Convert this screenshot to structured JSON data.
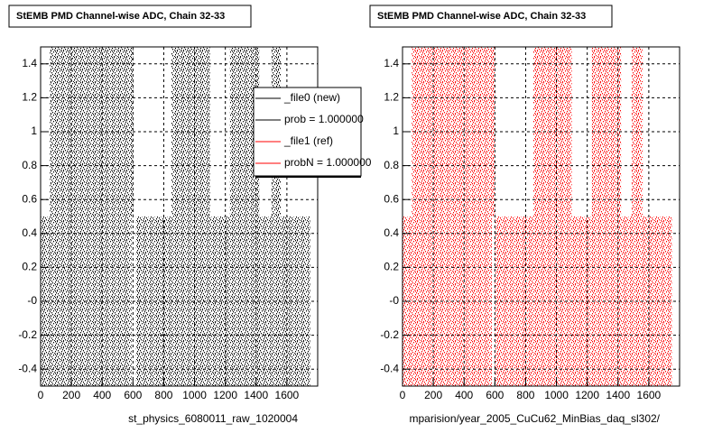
{
  "chart_data": [
    {
      "type": "scatter",
      "title": "StEMB PMD Channel-wise ADC, Chain 32-33",
      "xlabel": "st_physics_6080011_raw_1020004",
      "xlim": [
        0,
        1800
      ],
      "ylim": [
        -0.5,
        1.5
      ],
      "xticks": [
        0,
        200,
        400,
        600,
        800,
        1000,
        1200,
        1400,
        1600
      ],
      "yticks": [
        -0.4,
        -0.2,
        {
          "value": 0,
          "label": "-0"
        },
        0.2,
        0.4,
        0.6,
        0.8,
        1,
        1.2,
        1.4
      ],
      "grid": true,
      "series": [
        {
          "name": "_file0 (new)",
          "color": "#000000",
          "x_ranges": [
            [
              60,
              600
            ],
            [
              850,
              1100
            ],
            [
              1230,
              1420
            ],
            [
              1500,
              1560
            ],
            [
              0,
              590
            ],
            [
              620,
              1750
            ]
          ],
          "y_ranges": [
            [
              0.5,
              1.5
            ],
            [
              0.5,
              1.5
            ],
            [
              0.5,
              1.5
            ],
            [
              0.5,
              1.5
            ],
            [
              -0.5,
              0.5
            ],
            [
              -0.5,
              0.5
            ]
          ]
        }
      ],
      "legend": [
        {
          "label": "_file0 (new)",
          "color": "#000000"
        },
        {
          "label": "prob = 1.000000",
          "color": "#000000"
        },
        {
          "label": "_file1 (ref)",
          "color": "#ff0000"
        },
        {
          "label": "probN = 1.000000",
          "color": "#ff0000"
        }
      ]
    },
    {
      "type": "scatter",
      "title": "StEMB PMD Channel-wise ADC, Chain 32-33",
      "xlabel": "mparision/year_2005_CuCu62_MinBias_daq_sl302/",
      "xlim": [
        0,
        1800
      ],
      "ylim": [
        -0.5,
        1.5
      ],
      "xticks": [
        0,
        200,
        400,
        600,
        800,
        1000,
        1200,
        1400,
        1600
      ],
      "yticks": [
        -0.4,
        -0.2,
        {
          "value": 0,
          "label": "-0"
        },
        0.2,
        0.4,
        0.6,
        0.8,
        1,
        1.2,
        1.4
      ],
      "grid": true,
      "series": [
        {
          "name": "_file1 (ref)",
          "color": "#ff0000",
          "x_ranges": [
            [
              60,
              600
            ],
            [
              850,
              1100
            ],
            [
              1230,
              1420
            ],
            [
              1490,
              1560
            ],
            [
              0,
              580
            ],
            [
              600,
              1750
            ]
          ],
          "y_ranges": [
            [
              0.5,
              1.5
            ],
            [
              0.5,
              1.5
            ],
            [
              0.5,
              1.5
            ],
            [
              0.5,
              1.5
            ],
            [
              -0.5,
              0.5
            ],
            [
              -0.5,
              0.5
            ]
          ]
        }
      ]
    }
  ]
}
